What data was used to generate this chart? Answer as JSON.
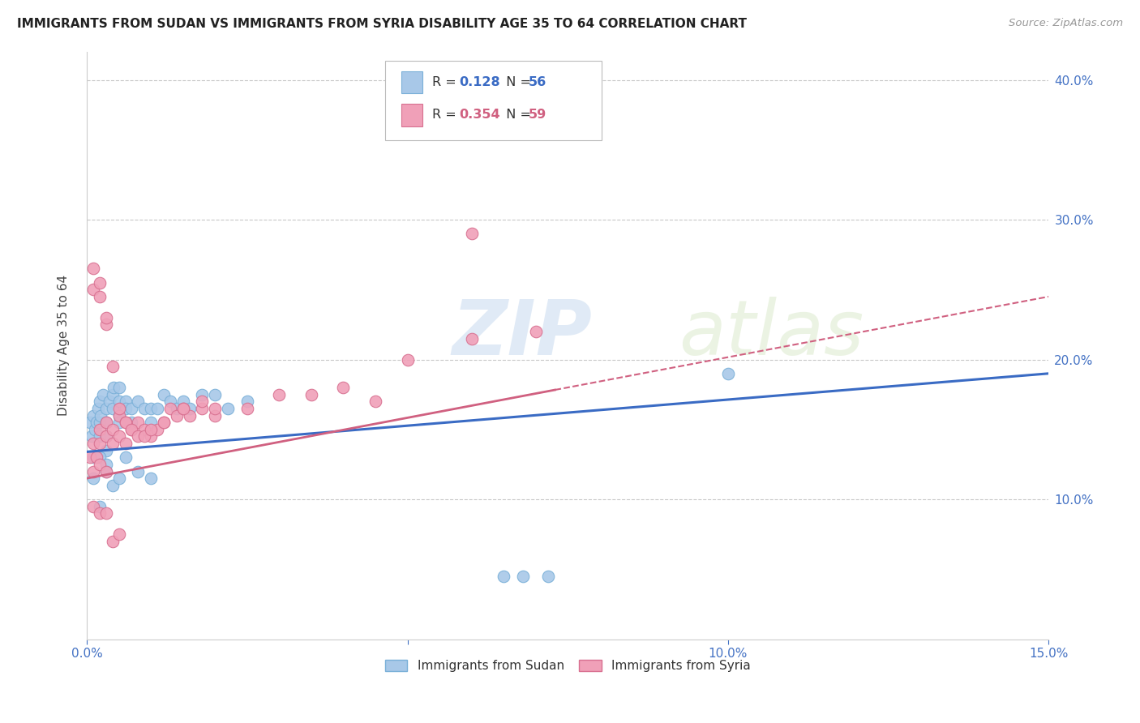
{
  "title": "IMMIGRANTS FROM SUDAN VS IMMIGRANTS FROM SYRIA DISABILITY AGE 35 TO 64 CORRELATION CHART",
  "source": "Source: ZipAtlas.com",
  "ylabel": "Disability Age 35 to 64",
  "xlim": [
    0.0,
    0.15
  ],
  "ylim": [
    0.0,
    0.42
  ],
  "xticks": [
    0.0,
    0.05,
    0.1,
    0.15
  ],
  "xticklabels": [
    "0.0%",
    "",
    "10.0%",
    "15.0%"
  ],
  "yticks": [
    0.1,
    0.2,
    0.3,
    0.4
  ],
  "yticklabels": [
    "10.0%",
    "20.0%",
    "30.0%",
    "40.0%"
  ],
  "sudan_color": "#a8c8e8",
  "sudan_edge": "#7ab0d8",
  "syria_color": "#f0a0b8",
  "syria_edge": "#d87090",
  "sudan_line_color": "#3a6bc4",
  "syria_line_color": "#d06080",
  "sudan_R": 0.128,
  "sudan_N": 56,
  "syria_R": 0.354,
  "syria_N": 59,
  "watermark_zip": "ZIP",
  "watermark_atlas": "atlas",
  "legend_sudan": "Immigrants from Sudan",
  "legend_syria": "Immigrants from Syria",
  "tick_color": "#4472c4",
  "grid_color": "#c8c8c8",
  "background_color": "#ffffff",
  "sudan_x": [
    0.0005,
    0.0008,
    0.001,
    0.0012,
    0.0015,
    0.0018,
    0.002,
    0.002,
    0.002,
    0.0022,
    0.0025,
    0.003,
    0.003,
    0.003,
    0.003,
    0.0035,
    0.004,
    0.004,
    0.0042,
    0.005,
    0.005,
    0.005,
    0.006,
    0.006,
    0.007,
    0.007,
    0.008,
    0.009,
    0.01,
    0.01,
    0.011,
    0.012,
    0.013,
    0.014,
    0.015,
    0.016,
    0.018,
    0.02,
    0.022,
    0.025,
    0.005,
    0.002,
    0.001,
    0.001,
    0.002,
    0.003,
    0.003,
    0.004,
    0.005,
    0.006,
    0.008,
    0.01,
    0.065,
    0.068,
    0.072,
    0.1
  ],
  "sudan_y": [
    0.155,
    0.145,
    0.16,
    0.15,
    0.155,
    0.165,
    0.17,
    0.155,
    0.145,
    0.16,
    0.175,
    0.165,
    0.155,
    0.145,
    0.135,
    0.17,
    0.165,
    0.175,
    0.18,
    0.17,
    0.16,
    0.155,
    0.17,
    0.165,
    0.165,
    0.155,
    0.17,
    0.165,
    0.165,
    0.155,
    0.165,
    0.175,
    0.17,
    0.165,
    0.17,
    0.165,
    0.175,
    0.175,
    0.165,
    0.17,
    0.18,
    0.095,
    0.115,
    0.13,
    0.13,
    0.125,
    0.12,
    0.11,
    0.115,
    0.13,
    0.12,
    0.115,
    0.045,
    0.045,
    0.045,
    0.19
  ],
  "syria_x": [
    0.0005,
    0.001,
    0.001,
    0.0015,
    0.002,
    0.002,
    0.002,
    0.003,
    0.003,
    0.003,
    0.004,
    0.004,
    0.005,
    0.005,
    0.006,
    0.006,
    0.007,
    0.008,
    0.009,
    0.01,
    0.011,
    0.012,
    0.013,
    0.014,
    0.015,
    0.016,
    0.018,
    0.02,
    0.001,
    0.001,
    0.002,
    0.002,
    0.003,
    0.003,
    0.004,
    0.005,
    0.006,
    0.007,
    0.008,
    0.009,
    0.01,
    0.012,
    0.015,
    0.018,
    0.02,
    0.025,
    0.03,
    0.035,
    0.04,
    0.045,
    0.05,
    0.06,
    0.07,
    0.001,
    0.002,
    0.003,
    0.004,
    0.005,
    0.06
  ],
  "syria_y": [
    0.13,
    0.14,
    0.12,
    0.13,
    0.15,
    0.14,
    0.125,
    0.155,
    0.145,
    0.12,
    0.15,
    0.14,
    0.16,
    0.145,
    0.155,
    0.14,
    0.15,
    0.155,
    0.15,
    0.145,
    0.15,
    0.155,
    0.165,
    0.16,
    0.165,
    0.16,
    0.165,
    0.16,
    0.25,
    0.265,
    0.245,
    0.255,
    0.225,
    0.23,
    0.195,
    0.165,
    0.155,
    0.15,
    0.145,
    0.145,
    0.15,
    0.155,
    0.165,
    0.17,
    0.165,
    0.165,
    0.175,
    0.175,
    0.18,
    0.17,
    0.2,
    0.215,
    0.22,
    0.095,
    0.09,
    0.09,
    0.07,
    0.075,
    0.29
  ]
}
